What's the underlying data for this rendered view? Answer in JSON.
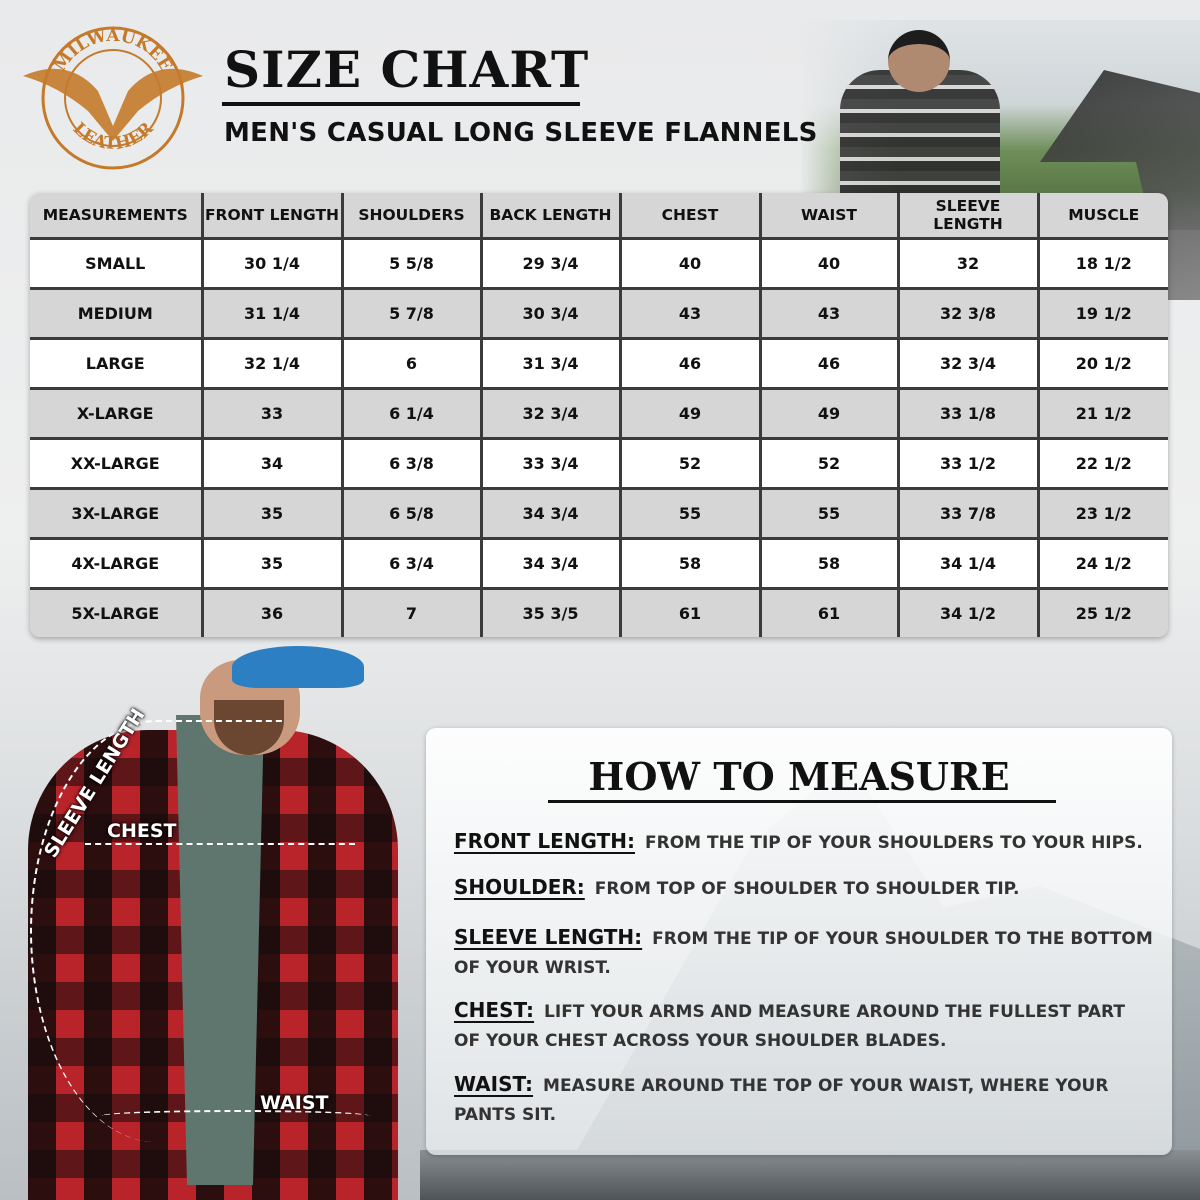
{
  "logo": {
    "top_text": "MILWAUKEE",
    "bottom_text": "LEATHER",
    "color": "#c47a2a"
  },
  "header": {
    "title": "SIZE CHART",
    "subtitle": "MEN'S CASUAL LONG SLEEVE FLANNELS"
  },
  "chart_data": {
    "type": "table",
    "columns": [
      "MEASUREMENTS",
      "FRONT LENGTH",
      "SHOULDERS",
      "BACK LENGTH",
      "CHEST",
      "WAIST",
      "SLEEVE LENGTH",
      "MUSCLE"
    ],
    "rows": [
      [
        "SMALL",
        "30 1/4",
        "5 5/8",
        "29 3/4",
        "40",
        "40",
        "32",
        "18 1/2"
      ],
      [
        "MEDIUM",
        "31 1/4",
        "5 7/8",
        "30 3/4",
        "43",
        "43",
        "32 3/8",
        "19 1/2"
      ],
      [
        "LARGE",
        "32 1/4",
        "6",
        "31 3/4",
        "46",
        "46",
        "32 3/4",
        "20 1/2"
      ],
      [
        "X-LARGE",
        "33",
        "6 1/4",
        "32 3/4",
        "49",
        "49",
        "33 1/8",
        "21 1/2"
      ],
      [
        "XX-LARGE",
        "34",
        "6 3/8",
        "33 3/4",
        "52",
        "52",
        "33 1/2",
        "22 1/2"
      ],
      [
        "3X-LARGE",
        "35",
        "6 5/8",
        "34 3/4",
        "55",
        "55",
        "33 7/8",
        "23 1/2"
      ],
      [
        "4X-LARGE",
        "35",
        "6 3/4",
        "34 3/4",
        "58",
        "58",
        "34 1/4",
        "24 1/2"
      ],
      [
        "5X-LARGE",
        "36",
        "7",
        "35 3/5",
        "61",
        "61",
        "34 1/2",
        "25 1/2"
      ]
    ]
  },
  "model_labels": {
    "sleeve": "SLEEVE LENGTH",
    "chest": "CHEST",
    "waist": "WAIST"
  },
  "how_to_measure": {
    "title": "HOW TO MEASURE",
    "items": [
      {
        "term": "FRONT LENGTH:",
        "text": "FROM THE TIP OF YOUR SHOULDERS TO YOUR HIPS."
      },
      {
        "term": "SHOULDER:",
        "text": "FROM TOP OF SHOULDER TO SHOULDER TIP."
      },
      {
        "term": "SLEEVE LENGTH:",
        "text": "FROM THE TIP OF YOUR SHOULDER TO THE BOTTOM OF YOUR WRIST."
      },
      {
        "term": "CHEST:",
        "text": "LIFT YOUR ARMS AND MEASURE AROUND THE FULLEST PART OF YOUR CHEST ACROSS YOUR SHOULDER BLADES."
      },
      {
        "term": "WAIST:",
        "text": "MEASURE AROUND THE TOP OF YOUR WAIST, WHERE YOUR PANTS SIT."
      }
    ]
  }
}
